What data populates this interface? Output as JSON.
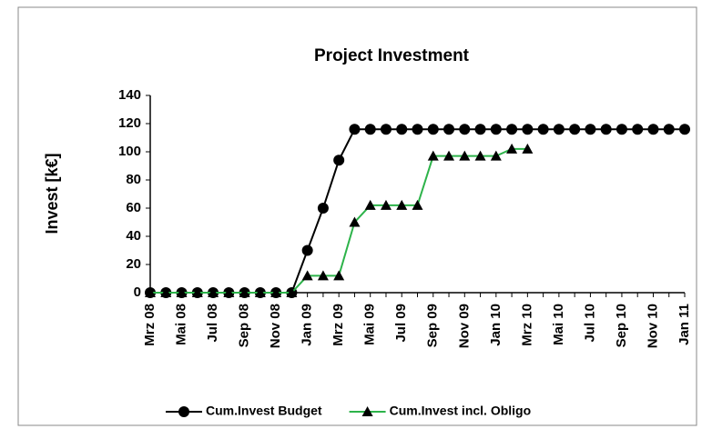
{
  "chart_data": {
    "type": "line",
    "title": "Project Investment",
    "y_label": "Invest [k€]",
    "categories": [
      "Mrz 08",
      null,
      "Mai 08",
      null,
      "Jul 08",
      null,
      "Sep 08",
      null,
      "Nov 08",
      null,
      "Jan 09",
      null,
      "Mrz 09",
      null,
      "Mai 09",
      null,
      "Jul 09",
      null,
      "Sep 09",
      null,
      "Nov 09",
      null,
      "Jan 10",
      null,
      "Mrz 10",
      null,
      "Mai 10",
      null,
      "Jul 10",
      null,
      "Sep 10",
      null,
      "Nov 10",
      null,
      "Jan 11"
    ],
    "series": [
      {
        "name": "Cum.Invest Budget",
        "color": "#000000",
        "marker": "circle",
        "values": [
          0,
          0,
          0,
          0,
          0,
          0,
          0,
          0,
          0,
          0,
          30,
          60,
          94,
          116,
          116,
          116,
          116,
          116,
          116,
          116,
          116,
          116,
          116,
          116,
          116,
          116,
          116,
          116,
          116,
          116,
          116,
          116,
          116,
          116,
          116
        ]
      },
      {
        "name": "Cum.Invest incl. Obligo",
        "color": "#2db34a",
        "marker": "triangle",
        "values": [
          0,
          0,
          0,
          0,
          0,
          0,
          0,
          0,
          0,
          0,
          12,
          12,
          12,
          50,
          62,
          62,
          62,
          62,
          97,
          97,
          97,
          97,
          97,
          102,
          102,
          null,
          null,
          null,
          null,
          null,
          null,
          null,
          null,
          null,
          null
        ]
      }
    ],
    "ylim": [
      0,
      140
    ],
    "yticks": [
      0,
      20,
      40,
      60,
      80,
      100,
      120,
      140
    ],
    "legend": "bottom"
  }
}
